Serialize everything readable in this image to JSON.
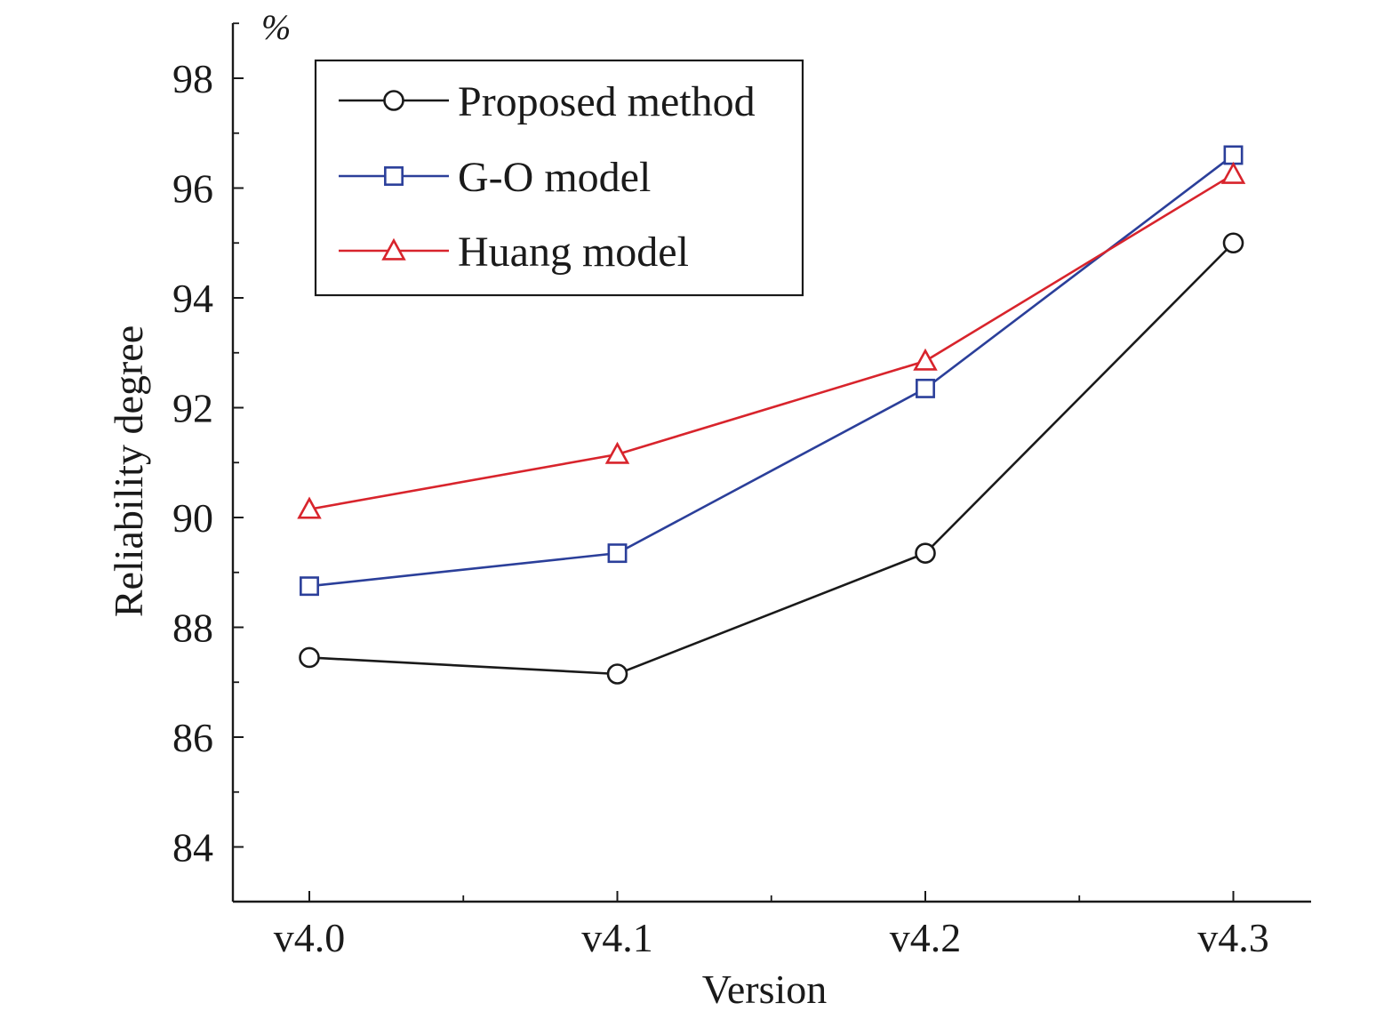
{
  "chart_data": {
    "type": "line",
    "xlabel": "Version",
    "ylabel": "Reliability degree",
    "y_unit": "%",
    "categories": [
      "v4.0",
      "v4.1",
      "v4.2",
      "v4.3"
    ],
    "ylim": [
      83,
      99
    ],
    "yticks": [
      84,
      86,
      88,
      90,
      92,
      94,
      96,
      98
    ],
    "ytick_labels": [
      "84",
      "86",
      "88",
      "90",
      "92",
      "94",
      "96",
      "98"
    ],
    "grid": false,
    "legend_position": "top-left",
    "series": [
      {
        "name": "Proposed method",
        "values": [
          87.45,
          87.15,
          89.35,
          95.0
        ],
        "color": "#1a1a1a",
        "marker": "circle"
      },
      {
        "name": "G-O model",
        "values": [
          88.75,
          89.35,
          92.35,
          96.6
        ],
        "color": "#2b3f9a",
        "marker": "square"
      },
      {
        "name": "Huang model",
        "values": [
          90.15,
          91.15,
          92.85,
          96.25
        ],
        "color": "#d8242c",
        "marker": "triangle"
      }
    ]
  }
}
